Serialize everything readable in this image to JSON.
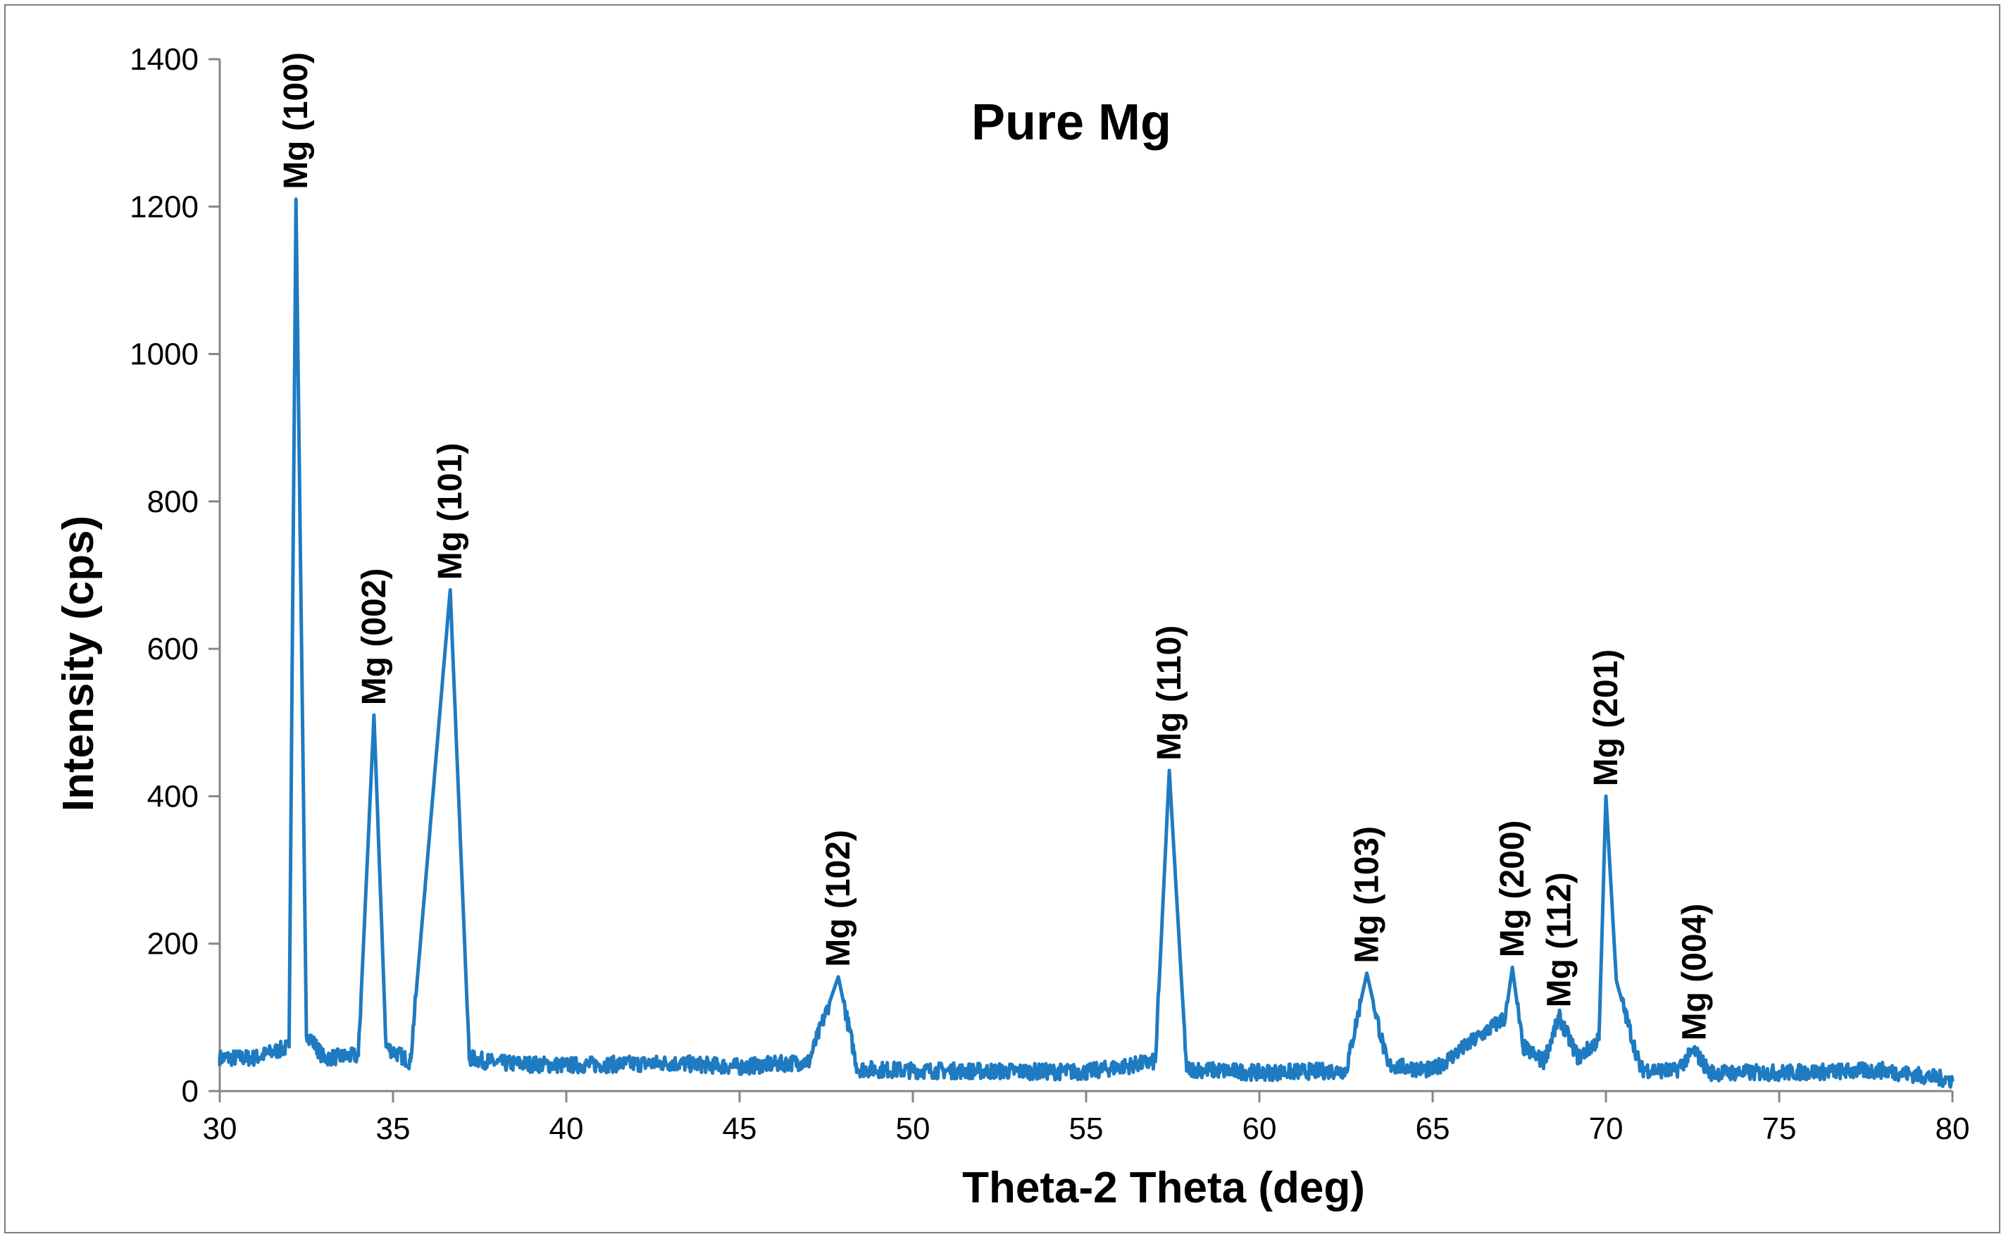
{
  "chart_data": {
    "type": "line",
    "title": "Pure Mg",
    "xlabel": "Theta-2 Theta (deg)",
    "ylabel": "Intensity (cps)",
    "xlim": [
      30,
      80
    ],
    "ylim": [
      0,
      1400
    ],
    "xticks": [
      "30",
      "35",
      "40",
      "45",
      "50",
      "55",
      "60",
      "65",
      "70",
      "75",
      "80"
    ],
    "yticks": [
      "0",
      "200",
      "400",
      "600",
      "800",
      "1000",
      "1200",
      "1400"
    ],
    "grid": false,
    "legend": "none",
    "series": [
      {
        "color": "#1f7bc1",
        "x": [
          30,
          31,
          32,
          32.2,
          32.5,
          33,
          34,
          34.45,
          34.8,
          35.5,
          36.65,
          37.2,
          38,
          40,
          43,
          45,
          47,
          47.85,
          48.4,
          50,
          55,
          57,
          57.4,
          57.9,
          60,
          62.5,
          63.1,
          63.7,
          65,
          67.1,
          67.3,
          67.6,
          68.2,
          68.65,
          69.2,
          69.8,
          70.0,
          70.3,
          71,
          72,
          72.55,
          73,
          75,
          78,
          80
        ],
        "values": [
          45,
          45,
          60,
          1210,
          80,
          45,
          48,
          510,
          60,
          40,
          680,
          45,
          38,
          35,
          38,
          33,
          40,
          155,
          30,
          28,
          26,
          40,
          435,
          30,
          25,
          28,
          160,
          35,
          28,
          100,
          168,
          60,
          40,
          100,
          45,
          70,
          400,
          150,
          30,
          27,
          55,
          25,
          25,
          28,
          15
        ]
      }
    ],
    "annotations": [
      {
        "text": "Mg (100)",
        "x": 32.2,
        "y": 1210
      },
      {
        "text": "Mg (002)",
        "x": 34.45,
        "y": 510
      },
      {
        "text": "Mg (101)",
        "x": 36.65,
        "y": 680
      },
      {
        "text": "Mg (102)",
        "x": 47.85,
        "y": 155
      },
      {
        "text": "Mg (110)",
        "x": 57.4,
        "y": 435
      },
      {
        "text": "Mg (103)",
        "x": 63.1,
        "y": 160
      },
      {
        "text": "Mg (200)",
        "x": 67.3,
        "y": 168
      },
      {
        "text": "Mg (112)",
        "x": 68.65,
        "y": 100
      },
      {
        "text": "Mg (201)",
        "x": 70.0,
        "y": 400
      },
      {
        "text": "Mg (004)",
        "x": 72.55,
        "y": 55
      }
    ]
  }
}
